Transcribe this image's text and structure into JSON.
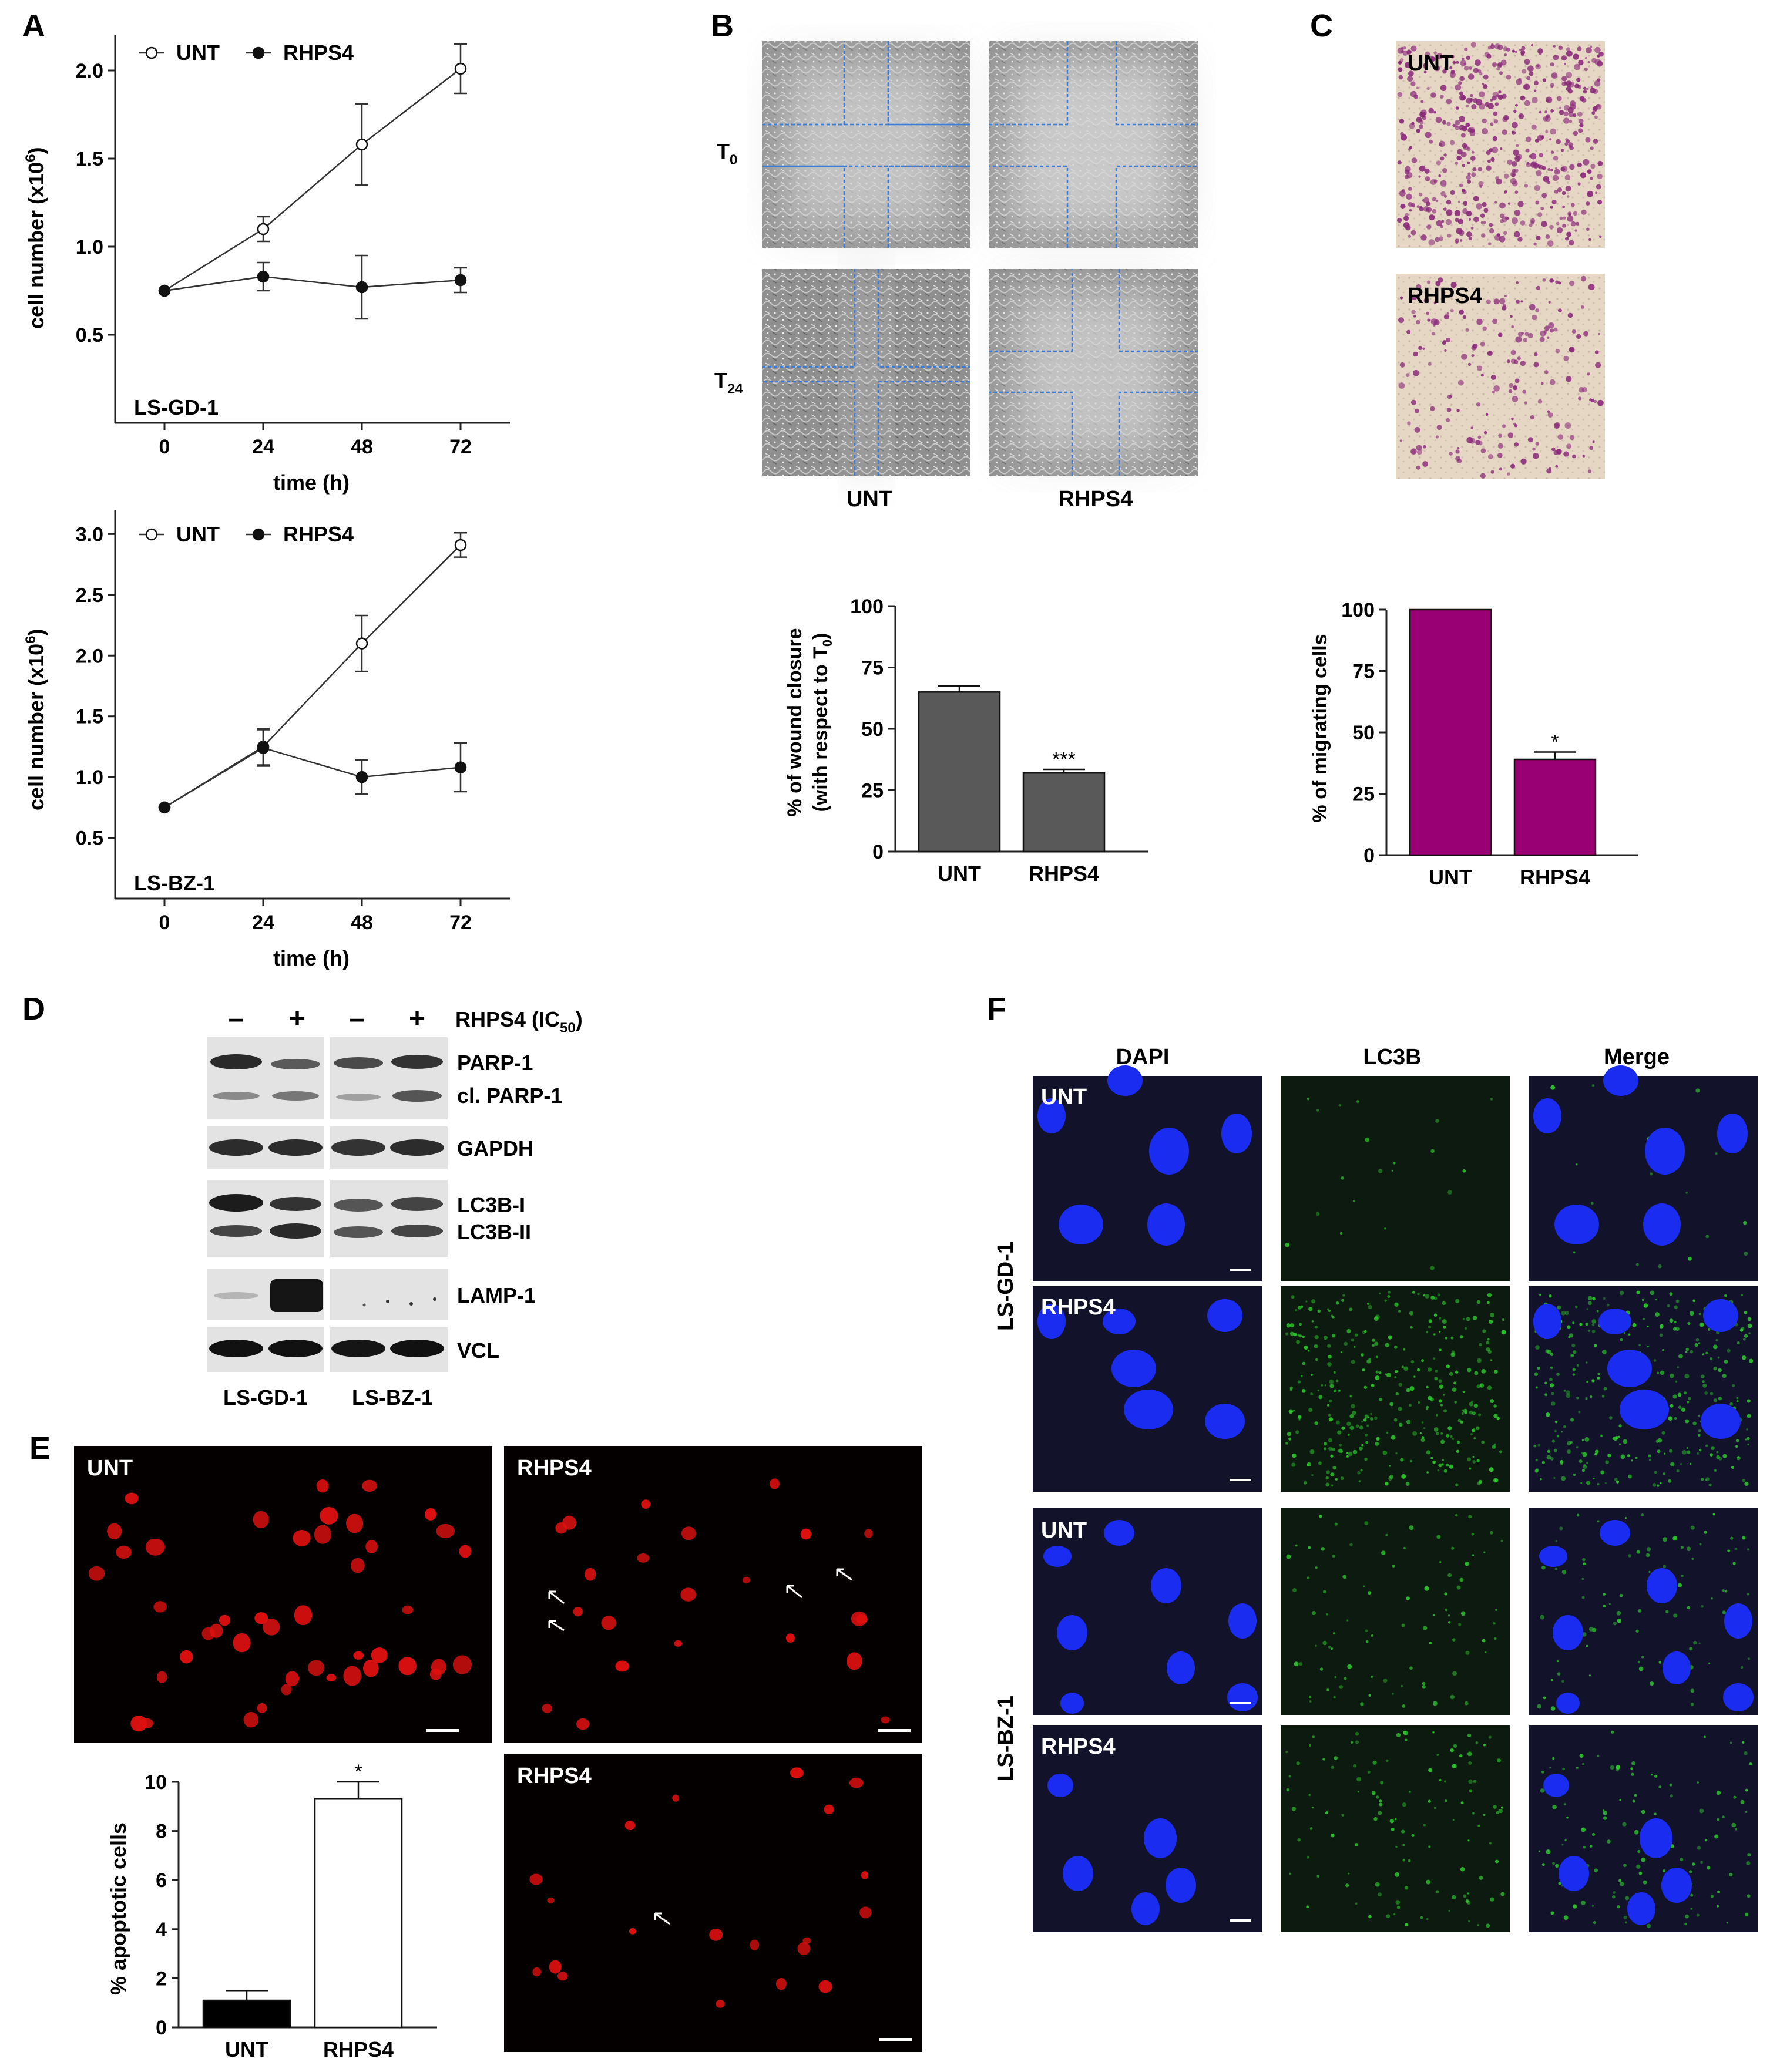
{
  "panels": {
    "A": {
      "letter": "A",
      "top": {
        "cell_line": "LS-GD-1",
        "ylabel_main": "cell number (x10",
        "ylabel_exp": "6",
        "ylabel_end": ")",
        "xlabel": "time (h)"
      },
      "bottom": {
        "cell_line": "LS-BZ-1",
        "ylabel_main": "cell number (x10",
        "ylabel_exp": "6",
        "ylabel_end": ")",
        "xlabel": "time (h)"
      },
      "legend": [
        "UNT",
        "RHPS4"
      ]
    },
    "B": {
      "letter": "B",
      "row_t0": "T",
      "row_t0_sub": "0",
      "row_t24": "T",
      "row_t24_sub": "24",
      "col_labels": [
        "UNT",
        "RHPS4"
      ],
      "ylabel_line1": "% of wound closure",
      "ylabel_line2": "(with respect to T",
      "ylabel_line2_sub": "0",
      "ylabel_line2_end": ")"
    },
    "C": {
      "letter": "C",
      "img_labels": [
        "UNT",
        "RHPS4"
      ],
      "ylabel": "% of migrating cells"
    },
    "D": {
      "letter": "D",
      "lane_signs": [
        "–",
        "+",
        "–",
        "+"
      ],
      "treatment": "RHPS4 (IC",
      "treatment_sub": "50",
      "treatment_end": ")",
      "bands": [
        "PARP-1",
        "cl. PARP-1",
        "GAPDH",
        "LC3B-I",
        "LC3B-II",
        "LAMP-1",
        "VCL"
      ],
      "cell_lines": [
        "LS-GD-1",
        "LS-BZ-1"
      ]
    },
    "E": {
      "letter": "E",
      "img_labels": [
        "UNT",
        "RHPS4",
        "RHPS4"
      ],
      "ylabel": "% apoptotic cells"
    },
    "F": {
      "letter": "F",
      "channels": [
        "DAPI",
        "LC3B",
        "Merge"
      ],
      "row_labels": [
        "UNT",
        "RHPS4",
        "UNT",
        "RHPS4"
      ],
      "cell_lines": [
        "LS-GD-1",
        "LS-BZ-1"
      ]
    }
  },
  "colors": {
    "bar_gray": "#595959",
    "bar_magenta": "#990073",
    "immuno_red": "#e01010",
    "dapi_blue": "#1a2cf0",
    "lc3b_green": "#2ed12e",
    "transwell_stain": "#8a2a7a",
    "wound_line": "#3a7cd8"
  },
  "chart_data": [
    {
      "id": "A-top",
      "type": "line",
      "title": "",
      "xlabel": "time (h)",
      "ylabel": "cell number (x10^6)",
      "x": [
        0,
        24,
        48,
        72
      ],
      "xlim": [
        -12,
        84
      ],
      "ylim": [
        0,
        2.2
      ],
      "yticks": [
        0.5,
        1.0,
        1.5,
        2.0
      ],
      "ytick_labels": [
        "0.5",
        "1.0",
        "1.5",
        "2.0"
      ],
      "annotation": "LS-GD-1",
      "legend_position": "top-left",
      "series": [
        {
          "name": "UNT",
          "marker": "open-circle",
          "values": [
            0.75,
            1.1,
            1.58,
            2.01
          ],
          "errors": [
            0,
            0.07,
            0.23,
            0.14
          ]
        },
        {
          "name": "RHPS4",
          "marker": "filled-circle",
          "values": [
            0.75,
            0.83,
            0.77,
            0.81
          ],
          "errors": [
            0,
            0.08,
            0.18,
            0.07
          ]
        }
      ]
    },
    {
      "id": "A-bottom",
      "type": "line",
      "title": "",
      "xlabel": "time (h)",
      "ylabel": "cell number (x10^6)",
      "x": [
        0,
        24,
        48,
        72
      ],
      "xlim": [
        -12,
        84
      ],
      "ylim": [
        0,
        3.2
      ],
      "yticks": [
        0.5,
        1.0,
        1.5,
        2.0,
        2.5,
        3.0
      ],
      "ytick_labels": [
        "0.5",
        "1.0",
        "1.5",
        "2.0",
        "2.5",
        "3.0"
      ],
      "annotation": "LS-BZ-1",
      "legend_position": "top-left",
      "series": [
        {
          "name": "UNT",
          "marker": "open-circle",
          "values": [
            0.75,
            1.25,
            2.1,
            2.91
          ],
          "errors": [
            0,
            0.15,
            0.23,
            0.1
          ]
        },
        {
          "name": "RHPS4",
          "marker": "filled-circle",
          "values": [
            0.75,
            1.24,
            1.0,
            1.08
          ],
          "errors": [
            0,
            0.15,
            0.14,
            0.2
          ]
        }
      ]
    },
    {
      "id": "B-bar",
      "type": "bar",
      "ylabel": "% of wound closure (with respect to T0)",
      "categories": [
        "UNT",
        "RHPS4"
      ],
      "values": [
        65,
        32
      ],
      "errors": [
        2.5,
        1.5
      ],
      "significance": [
        "",
        "***"
      ],
      "ylim": [
        0,
        100
      ],
      "yticks": [
        0,
        25,
        50,
        75,
        100
      ],
      "color": "#595959"
    },
    {
      "id": "C-bar",
      "type": "bar",
      "ylabel": "% of migrating cells",
      "categories": [
        "UNT",
        "RHPS4"
      ],
      "values": [
        100,
        39
      ],
      "errors": [
        0,
        3
      ],
      "significance": [
        "",
        "*"
      ],
      "ylim": [
        0,
        100
      ],
      "yticks": [
        0,
        25,
        50,
        75,
        100
      ],
      "color": "#990073"
    },
    {
      "id": "E-bar",
      "type": "bar",
      "ylabel": "% apoptotic cells",
      "categories": [
        "UNT",
        "RHPS4"
      ],
      "values": [
        1.1,
        9.3
      ],
      "errors": [
        0.4,
        0.7
      ],
      "significance": [
        "",
        "*"
      ],
      "ylim": [
        0,
        10
      ],
      "yticks": [
        0,
        2,
        4,
        6,
        8,
        10
      ],
      "fills": [
        "#000000",
        "#ffffff"
      ]
    }
  ]
}
